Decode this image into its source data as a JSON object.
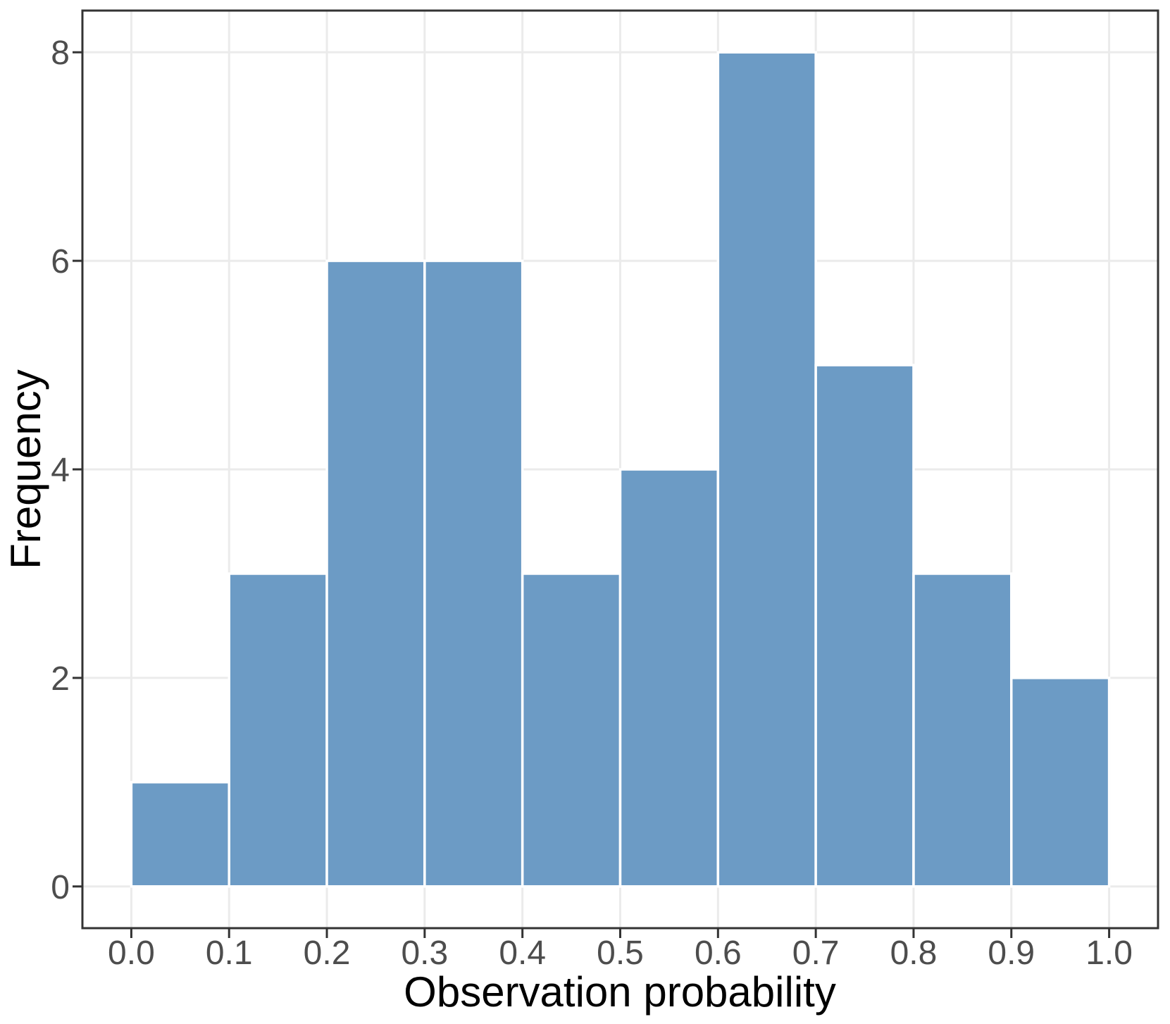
{
  "chart_data": {
    "type": "bar",
    "subtype": "histogram",
    "title": "",
    "xlabel": "Observation probability",
    "ylabel": "Frequency",
    "bin_edges": [
      0.0,
      0.1,
      0.2,
      0.3,
      0.4,
      0.5,
      0.6,
      0.7,
      0.8,
      0.9,
      1.0
    ],
    "values": [
      1,
      3,
      6,
      6,
      3,
      4,
      8,
      5,
      3,
      2
    ],
    "x_ticks": [
      {
        "label": "0.0",
        "value": 0.0
      },
      {
        "label": "0.1",
        "value": 0.1
      },
      {
        "label": "0.2",
        "value": 0.2
      },
      {
        "label": "0.3",
        "value": 0.3
      },
      {
        "label": "0.4",
        "value": 0.4
      },
      {
        "label": "0.5",
        "value": 0.5
      },
      {
        "label": "0.6",
        "value": 0.6
      },
      {
        "label": "0.7",
        "value": 0.7
      },
      {
        "label": "0.8",
        "value": 0.8
      },
      {
        "label": "0.9",
        "value": 0.9
      },
      {
        "label": "1.0",
        "value": 1.0
      }
    ],
    "y_ticks": [
      {
        "label": "0",
        "value": 0
      },
      {
        "label": "2",
        "value": 2
      },
      {
        "label": "4",
        "value": 4
      },
      {
        "label": "6",
        "value": 6
      },
      {
        "label": "8",
        "value": 8
      }
    ],
    "xlim": [
      -0.05,
      1.05
    ],
    "ylim": [
      -0.4,
      8.4
    ],
    "grid": "major-only",
    "legend": "none",
    "colors": {
      "bar_fill": "#6C9BC5",
      "bar_stroke": "#FFFFFF",
      "panel_background": "#FFFFFF",
      "panel_border": "#333333",
      "gridline": "#EBEBEB",
      "tick_mark": "#333333",
      "tick_label": "#4D4D4D",
      "axis_title": "#000000"
    }
  }
}
